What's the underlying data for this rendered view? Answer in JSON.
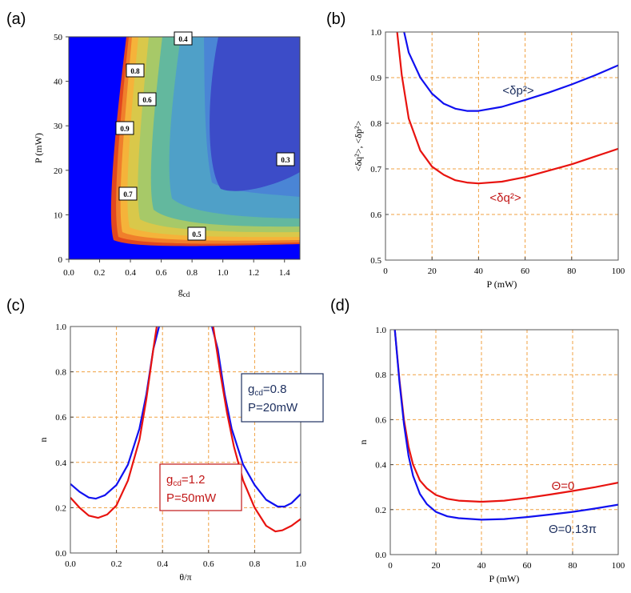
{
  "panels": {
    "a": {
      "label": "(a)"
    },
    "b": {
      "label": "(b)"
    },
    "c": {
      "label": "(c)"
    },
    "d": {
      "label": "(d)"
    }
  },
  "colors": {
    "red": "#e8130f",
    "blue": "#1010f0",
    "grid": "#f0a040",
    "annot_blue": "#1f3160",
    "annot_red": "#c21818"
  },
  "chart_data": [
    {
      "panel": "a",
      "type": "heatmap",
      "xlabel": "g",
      "xlabel_sub": "cd",
      "ylabel": "P (mW)",
      "xlim": [
        0,
        1.5
      ],
      "ylim": [
        0,
        50
      ],
      "xticks": [
        "0.0",
        "0.2",
        "0.4",
        "0.6",
        "0.8",
        "1.0",
        "1.2",
        "1.4"
      ],
      "yticks": [
        "0",
        "10",
        "20",
        "30",
        "40",
        "50"
      ],
      "contour_labels": [
        "0.4",
        "0.8",
        "0.6",
        "0.9",
        "0.3",
        "0.7",
        "0.5"
      ],
      "grid": false
    },
    {
      "panel": "b",
      "type": "line",
      "xlabel": "P (mW)",
      "ylabel": "<δq²>, <δp²>",
      "xlim": [
        0,
        100
      ],
      "ylim": [
        0.5,
        1.0
      ],
      "xticks": [
        "0",
        "20",
        "40",
        "60",
        "80",
        "100"
      ],
      "yticks": [
        "0.5",
        "0.6",
        "0.7",
        "0.8",
        "0.9",
        "1.0"
      ],
      "grid": true,
      "series": [
        {
          "name": "<δp²>",
          "color": "blue",
          "x": [
            8,
            10,
            15,
            20,
            25,
            30,
            35,
            40,
            50,
            60,
            70,
            80,
            90,
            100
          ],
          "y": [
            1.0,
            0.955,
            0.9,
            0.865,
            0.843,
            0.832,
            0.827,
            0.827,
            0.836,
            0.851,
            0.867,
            0.885,
            0.905,
            0.927
          ]
        },
        {
          "name": "<δq²>",
          "color": "red",
          "x": [
            5,
            7,
            10,
            15,
            20,
            25,
            30,
            35,
            40,
            50,
            60,
            70,
            80,
            90,
            100
          ],
          "y": [
            1.0,
            0.905,
            0.81,
            0.74,
            0.705,
            0.687,
            0.675,
            0.67,
            0.668,
            0.672,
            0.682,
            0.696,
            0.71,
            0.727,
            0.744
          ]
        }
      ]
    },
    {
      "panel": "c",
      "type": "line",
      "xlabel": "θ/π",
      "ylabel": "n",
      "xlim": [
        0,
        1.0
      ],
      "ylim": [
        0,
        1.0
      ],
      "xticks": [
        "0.0",
        "0.2",
        "0.4",
        "0.6",
        "0.8",
        "1.0"
      ],
      "yticks": [
        "0.0",
        "0.2",
        "0.4",
        "0.6",
        "0.8",
        "1.0"
      ],
      "grid": true,
      "annotations": [
        {
          "main": "g",
          "sub": "cd",
          "rest": "=0.8",
          "line2": "P=20mW",
          "color": "blue"
        },
        {
          "main": "g",
          "sub": "cd",
          "rest": "=1.2",
          "line2": "P=50mW",
          "color": "red"
        }
      ],
      "series": [
        {
          "color": "blue",
          "x": [
            0.0,
            0.04,
            0.08,
            0.11,
            0.15,
            0.2,
            0.25,
            0.3,
            0.33,
            0.36,
            0.385
          ],
          "y": [
            0.305,
            0.27,
            0.245,
            0.24,
            0.255,
            0.3,
            0.39,
            0.55,
            0.7,
            0.9,
            1.0
          ],
          "x2": [
            0.615,
            0.64,
            0.67,
            0.7,
            0.75,
            0.8,
            0.85,
            0.9,
            0.93,
            0.96,
            1.0
          ],
          "y2": [
            1.0,
            0.9,
            0.7,
            0.55,
            0.39,
            0.3,
            0.235,
            0.205,
            0.205,
            0.22,
            0.26
          ]
        },
        {
          "color": "red",
          "x": [
            0.0,
            0.04,
            0.08,
            0.12,
            0.16,
            0.2,
            0.25,
            0.3,
            0.33,
            0.36,
            0.375
          ],
          "y": [
            0.245,
            0.2,
            0.165,
            0.155,
            0.17,
            0.21,
            0.32,
            0.5,
            0.68,
            0.9,
            1.0
          ],
          "x2": [
            0.62,
            0.65,
            0.68,
            0.71,
            0.75,
            0.8,
            0.85,
            0.89,
            0.92,
            0.96,
            1.0
          ],
          "y2": [
            1.0,
            0.8,
            0.62,
            0.47,
            0.32,
            0.2,
            0.12,
            0.095,
            0.1,
            0.12,
            0.15
          ]
        }
      ]
    },
    {
      "panel": "d",
      "type": "line",
      "xlabel": "P (mW)",
      "ylabel": "n",
      "xlim": [
        0,
        100
      ],
      "ylim": [
        0,
        1.0
      ],
      "xticks": [
        "0",
        "20",
        "40",
        "60",
        "80",
        "100"
      ],
      "yticks": [
        "0.0",
        "0.2",
        "0.4",
        "0.6",
        "0.8",
        "1.0"
      ],
      "grid": true,
      "series": [
        {
          "name": "Θ=0",
          "color": "red",
          "x": [
            2,
            4,
            6,
            8,
            10,
            13,
            16,
            20,
            25,
            30,
            40,
            50,
            60,
            70,
            80,
            90,
            100
          ],
          "y": [
            1.0,
            0.78,
            0.6,
            0.48,
            0.4,
            0.33,
            0.295,
            0.265,
            0.248,
            0.24,
            0.235,
            0.24,
            0.252,
            0.267,
            0.283,
            0.3,
            0.32
          ]
        },
        {
          "name": "Θ=0.13π",
          "color": "blue",
          "x": [
            2,
            4,
            6,
            8,
            10,
            13,
            16,
            20,
            25,
            30,
            40,
            50,
            60,
            70,
            80,
            90,
            100
          ],
          "y": [
            1.0,
            0.77,
            0.58,
            0.44,
            0.35,
            0.27,
            0.225,
            0.19,
            0.17,
            0.162,
            0.155,
            0.158,
            0.167,
            0.178,
            0.19,
            0.205,
            0.222
          ]
        }
      ]
    }
  ]
}
